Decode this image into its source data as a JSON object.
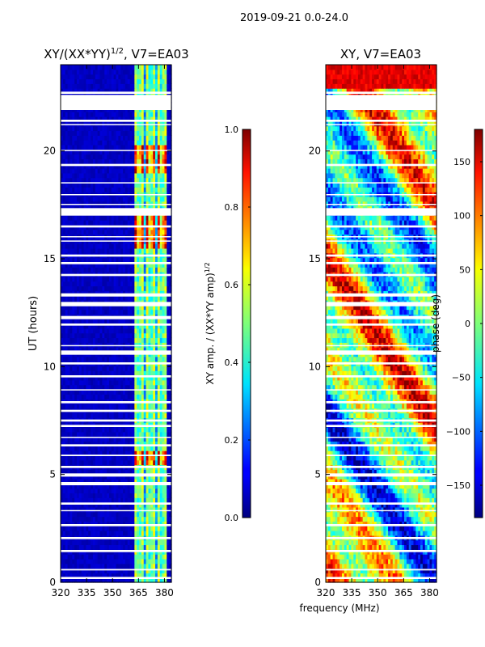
{
  "chart_data": {
    "suptitle": "2019-09-21 0.0-24.0",
    "shared_xlabel": "frequency (MHz)",
    "panels": [
      {
        "type": "heatmap",
        "title_prefix": "XY/(XX*YY)",
        "title_sup": "1/2",
        "title_suffix": ", V7=EA03",
        "ylabel": "UT (hours)",
        "xlim": [
          320,
          384
        ],
        "ylim": [
          0,
          24
        ],
        "xticks": [
          320,
          335,
          350,
          365,
          380
        ],
        "yticks": [
          0,
          5,
          10,
          15,
          20
        ],
        "colorbar": {
          "label_prefix": "XY amp. / (XX*YY amp)",
          "label_sup": "1/2",
          "range": [
            0.0,
            1.0
          ],
          "ticks": [
            "0.0",
            "0.2",
            "0.4",
            "0.6",
            "0.8",
            "1.0"
          ],
          "tick_values": [
            0.0,
            0.2,
            0.4,
            0.6,
            0.8,
            1.0
          ]
        },
        "colormap": "jet"
      },
      {
        "type": "heatmap",
        "title_prefix": "XY, V7=EA03",
        "title_sup": "",
        "title_suffix": "",
        "ylabel": "",
        "xlim": [
          320,
          384
        ],
        "ylim": [
          0,
          24
        ],
        "xticks": [
          320,
          335,
          350,
          365,
          380
        ],
        "yticks": [
          0,
          5,
          10,
          15,
          20
        ],
        "colorbar": {
          "label_prefix": "phase (deg)",
          "label_sup": "",
          "range": [
            -180,
            180
          ],
          "ticks": [
            "−150",
            "−100",
            "−50",
            "0",
            "50",
            "100",
            "150"
          ],
          "tick_values": [
            -150,
            -100,
            -50,
            0,
            50,
            100,
            150
          ]
        },
        "colormap": "jet"
      }
    ],
    "xtick_labels": [
      "320",
      "335",
      "350",
      "365",
      "380"
    ],
    "ytick_labels": [
      "0",
      "5",
      "10",
      "15",
      "20"
    ],
    "flagged_ut_ranges": [
      [
        0.15,
        0.25
      ],
      [
        0.55,
        0.62
      ],
      [
        1.4,
        1.5
      ],
      [
        2.0,
        2.1
      ],
      [
        2.6,
        2.7
      ],
      [
        3.3,
        3.35
      ],
      [
        3.6,
        3.7
      ],
      [
        4.5,
        4.65
      ],
      [
        4.9,
        5.05
      ],
      [
        5.3,
        5.4
      ],
      [
        5.85,
        5.92
      ],
      [
        6.3,
        6.4
      ],
      [
        6.7,
        6.75
      ],
      [
        7.2,
        7.3
      ],
      [
        7.45,
        7.55
      ],
      [
        7.9,
        8.0
      ],
      [
        8.3,
        8.4
      ],
      [
        8.9,
        8.95
      ],
      [
        9.5,
        9.6
      ],
      [
        10.1,
        10.2
      ],
      [
        10.55,
        10.75
      ],
      [
        10.95,
        11.0
      ],
      [
        11.9,
        12.0
      ],
      [
        12.2,
        12.35
      ],
      [
        12.8,
        13.0
      ],
      [
        13.25,
        13.4
      ],
      [
        14.2,
        14.3
      ],
      [
        14.75,
        14.85
      ],
      [
        15.1,
        15.2
      ],
      [
        15.8,
        15.85
      ],
      [
        16.0,
        16.05
      ],
      [
        16.45,
        16.55
      ],
      [
        17.0,
        17.35
      ],
      [
        17.5,
        17.55
      ],
      [
        17.95,
        18.0
      ],
      [
        18.5,
        18.55
      ],
      [
        19.3,
        19.4
      ],
      [
        20.0,
        20.05
      ],
      [
        21.2,
        21.25
      ],
      [
        21.35,
        21.45
      ],
      [
        21.9,
        22.6
      ],
      [
        22.65,
        22.75
      ]
    ]
  }
}
